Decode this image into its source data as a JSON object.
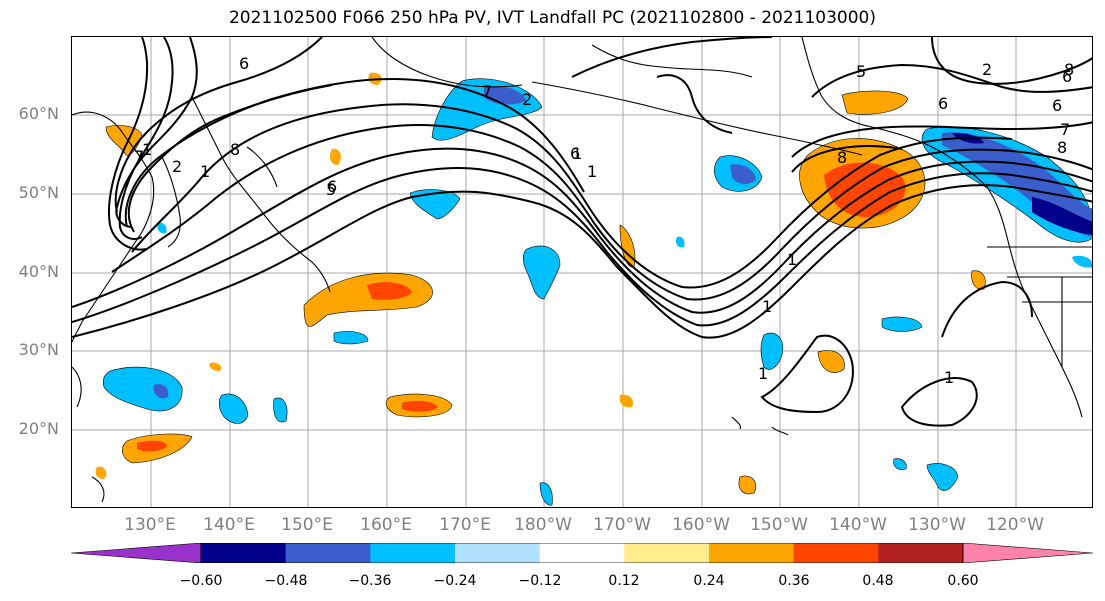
{
  "title": "2021102500 F066 250 hPa PV, IVT Landfall PC (2021102800 - 2021103000)",
  "lat_labels": [
    "60°N",
    "50°N",
    "40°N",
    "30°N",
    "20°N"
  ],
  "lon_labels": [
    "130°E",
    "140°E",
    "150°E",
    "160°E",
    "170°E",
    "180°W",
    "170°W",
    "160°W",
    "150°W",
    "140°W",
    "130°W",
    "120°W"
  ],
  "colorbar": {
    "tick_labels": [
      "−0.60",
      "−0.48",
      "−0.36",
      "−0.24",
      "−0.12",
      "0.12",
      "0.24",
      "0.36",
      "0.48",
      "0.60"
    ],
    "colors": [
      "#9932cc",
      "#00008b",
      "#3a5fcd",
      "#00bfff",
      "#b0e2ff",
      "#ffffff",
      "#ffec8b",
      "#ffa500",
      "#ff4500",
      "#b22222",
      "#ff82ab"
    ]
  },
  "contour_labels": [
    "6",
    "8",
    "2",
    "7",
    "6",
    "1",
    "1",
    "1",
    "1",
    "2",
    "7",
    "6",
    "8",
    "6",
    "1",
    "1",
    "1",
    "1",
    "5",
    "6",
    "8",
    "6",
    "8",
    "7",
    "2",
    "5"
  ]
}
